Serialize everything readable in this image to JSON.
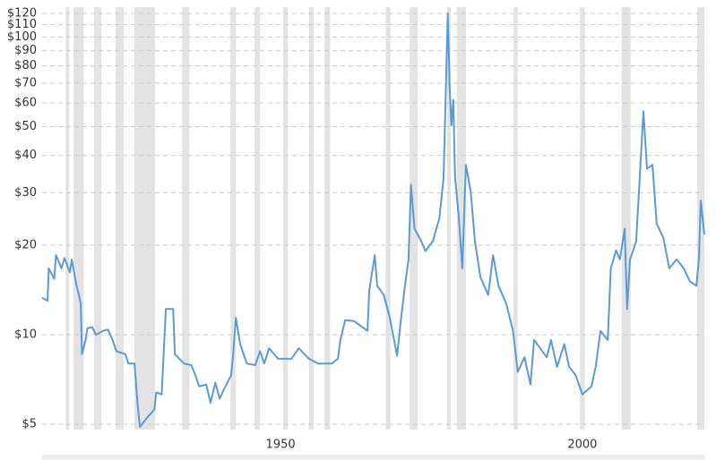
{
  "chart_data": {
    "type": "line",
    "log_y": true,
    "grid": true,
    "color": "#5a9bd4",
    "shade_color": "#e3e3e3",
    "xlim": [
      1910.5,
      2020.2
    ],
    "xticks": [
      1950,
      2000
    ],
    "ylim": [
      4.8,
      126
    ],
    "yticks": [
      {
        "value": 5,
        "label": "$5"
      },
      {
        "value": 10,
        "label": "$10"
      },
      {
        "value": 20,
        "label": "$20"
      },
      {
        "value": 30,
        "label": "$30"
      },
      {
        "value": 40,
        "label": "$40"
      },
      {
        "value": 50,
        "label": "$50"
      },
      {
        "value": 60,
        "label": "$60"
      },
      {
        "value": 70,
        "label": "$70"
      },
      {
        "value": 80,
        "label": "$80"
      },
      {
        "value": 90,
        "label": "$90"
      },
      {
        "value": 100,
        "label": "$100"
      },
      {
        "value": 110,
        "label": "$110"
      },
      {
        "value": 120,
        "label": "$120"
      }
    ],
    "shaded_periods": [
      [
        1914.4,
        1915.0
      ],
      [
        1915.7,
        1917.4
      ],
      [
        1919.1,
        1920.3
      ],
      [
        1922.7,
        1924.0
      ],
      [
        1925.8,
        1929.2
      ],
      [
        1933.7,
        1934.9
      ],
      [
        1941.7,
        1942.6
      ],
      [
        1945.7,
        1946.6
      ],
      [
        1950.4,
        1951.2
      ],
      [
        1954.7,
        1955.5
      ],
      [
        1957.3,
        1958.2
      ],
      [
        1967.4,
        1968.2
      ],
      [
        1971.4,
        1972.7
      ],
      [
        1977.6,
        1978.2
      ],
      [
        1979.2,
        1980.7
      ],
      [
        1988.6,
        1989.3
      ],
      [
        1999.6,
        2000.4
      ],
      [
        2006.5,
        2008.0
      ],
      [
        2019.0,
        2020.2
      ]
    ],
    "x": [
      1910.5,
      1911.4,
      1911.6,
      1912.5,
      1912.8,
      1913.7,
      1914.2,
      1915.1,
      1915.4,
      1916.2,
      1916.6,
      1916.9,
      1917.1,
      1917.7,
      1918.0,
      1918.8,
      1919.4,
      1920.6,
      1921.4,
      1922.1,
      1922.8,
      1924.3,
      1924.8,
      1925.8,
      1926.3,
      1926.7,
      1928.0,
      1929.1,
      1929.4,
      1930.3,
      1931.0,
      1932.2,
      1932.5,
      1934.0,
      1935.2,
      1935.9,
      1936.5,
      1937.7,
      1938.4,
      1939.2,
      1939.9,
      1940.7,
      1941.8,
      1942.1,
      1942.6,
      1943.3,
      1944.4,
      1945.8,
      1946.6,
      1947.3,
      1948.1,
      1949.6,
      1951.8,
      1953.0,
      1954.7,
      1956.2,
      1958.5,
      1959.5,
      1959.9,
      1960.7,
      1962.2,
      1964.4,
      1964.7,
      1965.6,
      1966.0,
      1967.1,
      1968.1,
      1969.3,
      1969.9,
      1970.6,
      1971.2,
      1971.6,
      1972.2,
      1973.3,
      1974.0,
      1975.2,
      1976.3,
      1977.0,
      1977.7,
      1978.0,
      1978.3,
      1978.6,
      1978.9,
      1979.5,
      1980.1,
      1980.7,
      1981.5,
      1982.2,
      1983.1,
      1984.4,
      1985.2,
      1986.1,
      1987.4,
      1988.5,
      1989.3,
      1990.4,
      1991.4,
      1992.0,
      1993.0,
      1994.1,
      1994.8,
      1995.8,
      1997.0,
      1997.8,
      1998.9,
      2000.0,
      2001.5,
      2002.2,
      2003.0,
      2004.2,
      2004.7,
      2005.6,
      2006.2,
      2007.0,
      2007.4,
      2007.9,
      2008.9,
      2009.5,
      2010.1,
      2010.7,
      2011.6,
      2012.3,
      2013.4,
      2014.4,
      2015.6,
      2016.8,
      2017.8,
      2018.9,
      2019.3,
      2019.6,
      2020.2
    ],
    "values": [
      13.3,
      13.0,
      16.7,
      15.4,
      18.5,
      16.7,
      18.1,
      16.2,
      17.9,
      14.6,
      13.6,
      12.7,
      8.6,
      9.6,
      10.5,
      10.6,
      10.0,
      10.3,
      10.4,
      9.7,
      8.8,
      8.6,
      8.0,
      8.0,
      5.9,
      4.9,
      5.3,
      5.6,
      6.4,
      6.3,
      12.2,
      12.2,
      8.6,
      8.0,
      7.9,
      7.3,
      6.7,
      6.8,
      5.9,
      6.9,
      6.1,
      6.6,
      7.3,
      8.4,
      11.4,
      9.3,
      8.0,
      7.9,
      8.8,
      8.0,
      9.0,
      8.3,
      8.3,
      9.0,
      8.3,
      8.0,
      8.0,
      8.3,
      9.6,
      11.2,
      11.1,
      10.3,
      14.1,
      18.5,
      14.6,
      13.6,
      11.4,
      8.5,
      11.1,
      14.6,
      17.9,
      31.9,
      22.7,
      20.6,
      19.1,
      20.6,
      24.6,
      33.7,
      120,
      69,
      50.5,
      61.5,
      33.7,
      25.3,
      16.7,
      37.2,
      30.2,
      20.6,
      15.6,
      13.6,
      18.5,
      14.6,
      12.7,
      10.3,
      7.5,
      8.4,
      6.8,
      9.6,
      9.0,
      8.4,
      9.6,
      7.8,
      9.3,
      7.8,
      7.3,
      6.3,
      6.7,
      7.8,
      10.3,
      9.6,
      16.7,
      19.2,
      17.9,
      22.7,
      12.2,
      17.9,
      20.6,
      33.7,
      56.3,
      36.1,
      37.2,
      23.6,
      21.2,
      16.7,
      17.9,
      16.7,
      15.1,
      14.6,
      17.9,
      28.2,
      21.7
    ]
  }
}
